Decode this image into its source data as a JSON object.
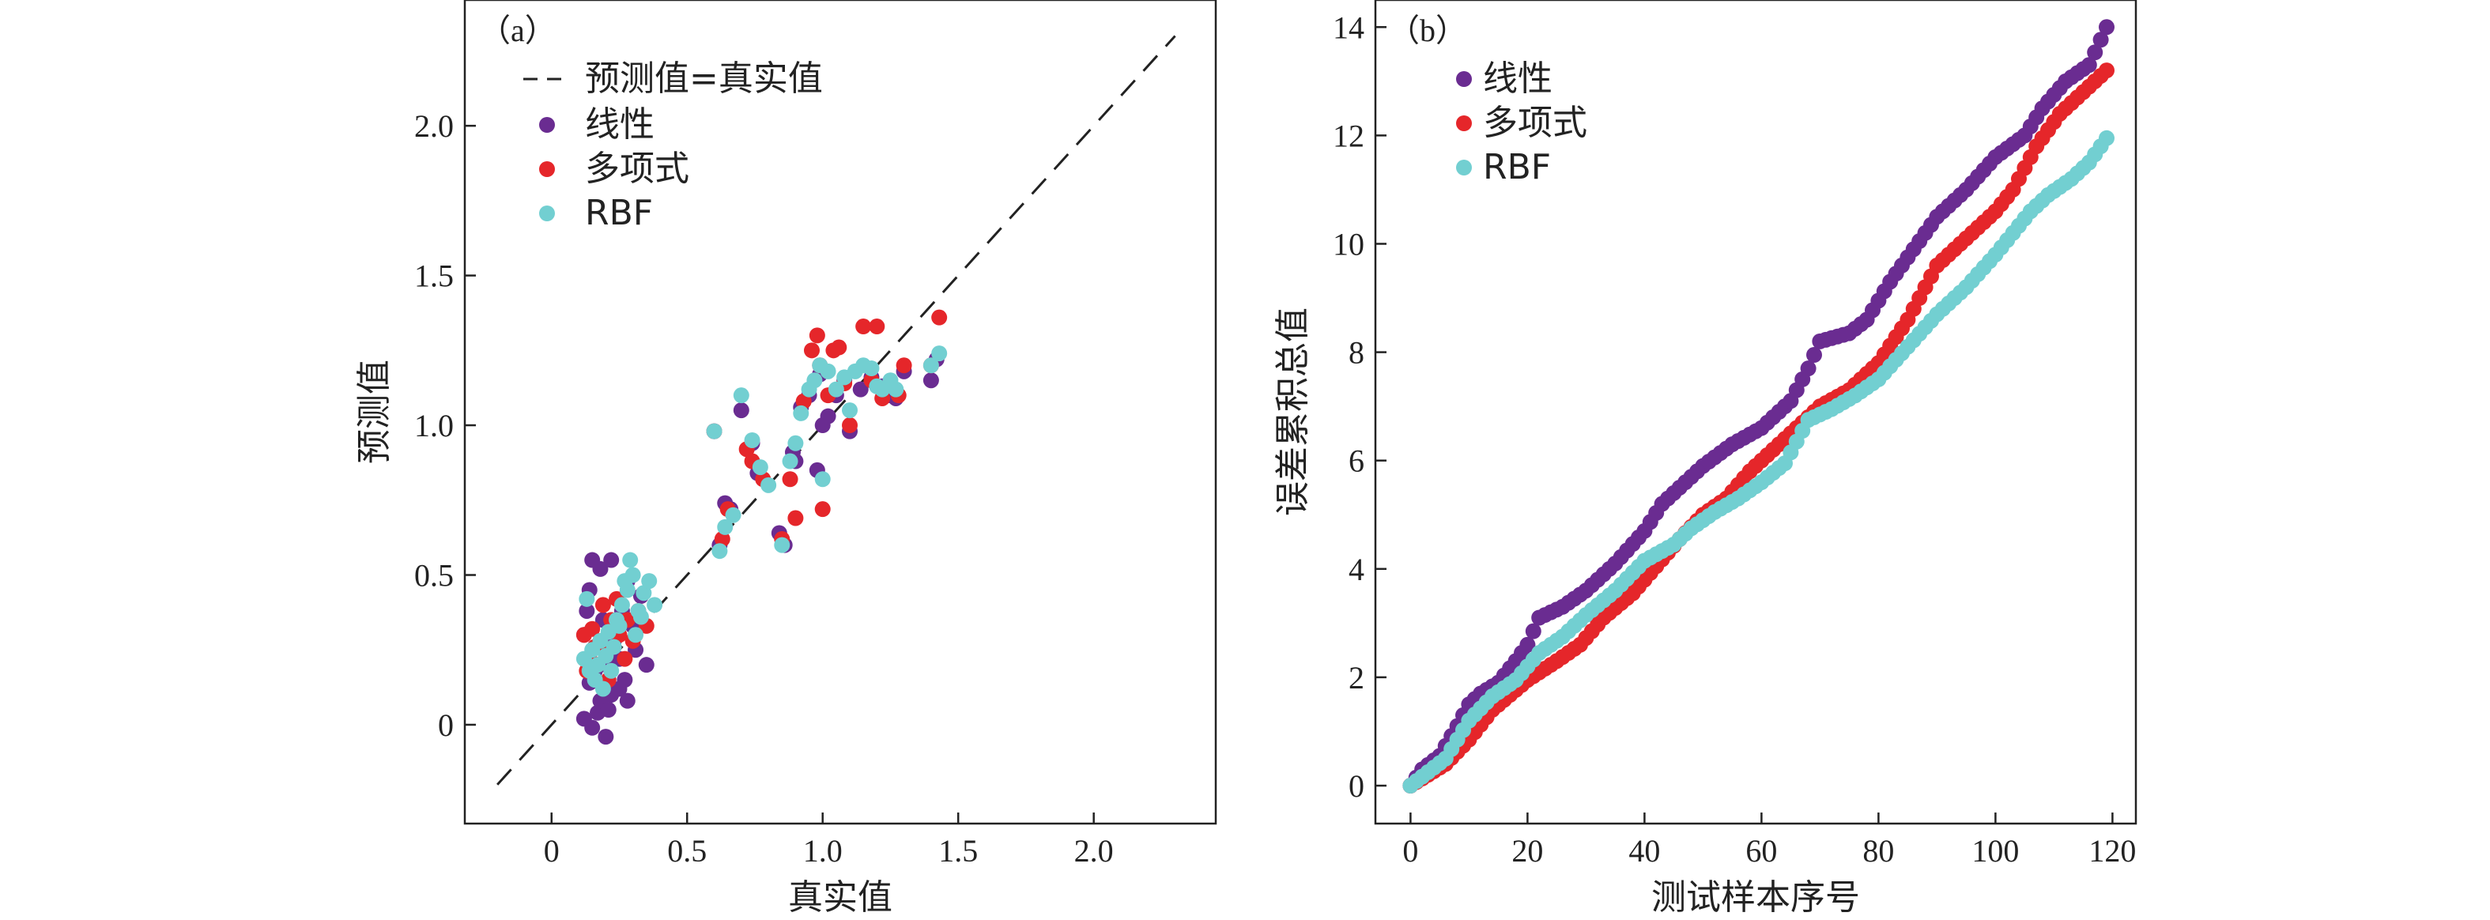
{
  "colors": {
    "linear": "#6a2c91",
    "polynomial": "#e5262a",
    "rbf": "#72cfd1",
    "diagonal": "#222222"
  },
  "chart_data": [
    {
      "type": "scatter",
      "panel_label": "（a）",
      "xlabel": "真实值",
      "ylabel": "预测值",
      "xlim": [
        -0.32,
        2.45
      ],
      "ylim": [
        -0.33,
        2.42
      ],
      "xticks": [
        0,
        0.5,
        1.0,
        1.5,
        2.0
      ],
      "xtick_labels": [
        "0",
        "0.5",
        "1.0",
        "1.5",
        "2.0"
      ],
      "yticks": [
        0,
        0.5,
        1.0,
        1.5,
        2.0
      ],
      "ytick_labels": [
        "0",
        "0.5",
        "1.0",
        "1.5",
        "2.0"
      ],
      "legend_position": "top-left",
      "reference_line": {
        "name": "预测值=真实值",
        "from": [
          -0.2,
          -0.2
        ],
        "to": [
          2.3,
          2.3
        ]
      },
      "series": [
        {
          "name": "线性",
          "color_key": "linear",
          "points": [
            [
              0.12,
              0.02
            ],
            [
              0.15,
              -0.01
            ],
            [
              0.17,
              0.04
            ],
            [
              0.2,
              -0.04
            ],
            [
              0.18,
              0.08
            ],
            [
              0.22,
              0.1
            ],
            [
              0.14,
              0.14
            ],
            [
              0.25,
              0.12
            ],
            [
              0.28,
              0.08
            ],
            [
              0.16,
              0.18
            ],
            [
              0.2,
              0.2
            ],
            [
              0.23,
              0.28
            ],
            [
              0.19,
              0.35
            ],
            [
              0.26,
              0.38
            ],
            [
              0.3,
              0.33
            ],
            [
              0.14,
              0.45
            ],
            [
              0.18,
              0.52
            ],
            [
              0.22,
              0.55
            ],
            [
              0.15,
              0.55
            ],
            [
              0.28,
              0.48
            ],
            [
              0.33,
              0.43
            ],
            [
              0.25,
              0.22
            ],
            [
              0.31,
              0.25
            ],
            [
              0.35,
              0.2
            ],
            [
              0.12,
              0.3
            ],
            [
              0.13,
              0.38
            ],
            [
              0.27,
              0.15
            ],
            [
              0.21,
              0.05
            ],
            [
              0.6,
              0.98
            ],
            [
              0.62,
              0.6
            ],
            [
              0.64,
              0.74
            ],
            [
              0.66,
              0.72
            ],
            [
              0.7,
              1.05
            ],
            [
              0.74,
              0.94
            ],
            [
              0.76,
              0.84
            ],
            [
              0.84,
              0.64
            ],
            [
              0.86,
              0.6
            ],
            [
              0.89,
              0.91
            ],
            [
              0.9,
              0.88
            ],
            [
              0.92,
              1.06
            ],
            [
              0.95,
              1.1
            ],
            [
              0.98,
              0.85
            ],
            [
              0.99,
              1.17
            ],
            [
              1.0,
              1.0
            ],
            [
              1.02,
              1.03
            ],
            [
              1.05,
              1.1
            ],
            [
              1.08,
              1.15
            ],
            [
              1.1,
              0.98
            ],
            [
              1.14,
              1.12
            ],
            [
              1.18,
              1.16
            ],
            [
              1.22,
              1.13
            ],
            [
              1.25,
              1.1
            ],
            [
              1.27,
              1.09
            ],
            [
              1.3,
              1.18
            ],
            [
              1.4,
              1.15
            ],
            [
              1.42,
              1.22
            ]
          ]
        },
        {
          "name": "多项式",
          "color_key": "polynomial",
          "points": [
            [
              0.12,
              0.3
            ],
            [
              0.15,
              0.32
            ],
            [
              0.18,
              0.28
            ],
            [
              0.2,
              0.25
            ],
            [
              0.22,
              0.35
            ],
            [
              0.14,
              0.22
            ],
            [
              0.17,
              0.2
            ],
            [
              0.25,
              0.3
            ],
            [
              0.28,
              0.35
            ],
            [
              0.3,
              0.28
            ],
            [
              0.32,
              0.38
            ],
            [
              0.35,
              0.33
            ],
            [
              0.13,
              0.18
            ],
            [
              0.19,
              0.4
            ],
            [
              0.24,
              0.42
            ],
            [
              0.27,
              0.22
            ],
            [
              0.21,
              0.15
            ],
            [
              0.16,
              0.26
            ],
            [
              0.6,
              0.98
            ],
            [
              0.63,
              0.62
            ],
            [
              0.65,
              0.72
            ],
            [
              0.72,
              0.92
            ],
            [
              0.74,
              0.88
            ],
            [
              0.78,
              0.82
            ],
            [
              0.85,
              0.62
            ],
            [
              0.88,
              0.82
            ],
            [
              0.9,
              0.69
            ],
            [
              0.93,
              1.08
            ],
            [
              0.96,
              1.25
            ],
            [
              0.98,
              1.3
            ],
            [
              0.99,
              1.2
            ],
            [
              1.0,
              0.72
            ],
            [
              1.02,
              1.1
            ],
            [
              1.04,
              1.25
            ],
            [
              1.06,
              1.26
            ],
            [
              1.08,
              1.14
            ],
            [
              1.1,
              1.0
            ],
            [
              1.15,
              1.33
            ],
            [
              1.18,
              1.15
            ],
            [
              1.2,
              1.33
            ],
            [
              1.22,
              1.09
            ],
            [
              1.25,
              1.13
            ],
            [
              1.28,
              1.1
            ],
            [
              1.3,
              1.2
            ],
            [
              1.4,
              1.2
            ],
            [
              1.43,
              1.36
            ]
          ]
        },
        {
          "name": "RBF",
          "color_key": "rbf",
          "points": [
            [
              0.12,
              0.22
            ],
            [
              0.14,
              0.18
            ],
            [
              0.15,
              0.25
            ],
            [
              0.17,
              0.2
            ],
            [
              0.18,
              0.28
            ],
            [
              0.2,
              0.23
            ],
            [
              0.21,
              0.31
            ],
            [
              0.23,
              0.26
            ],
            [
              0.24,
              0.35
            ],
            [
              0.26,
              0.4
            ],
            [
              0.28,
              0.45
            ],
            [
              0.3,
              0.5
            ],
            [
              0.32,
              0.38
            ],
            [
              0.34,
              0.44
            ],
            [
              0.16,
              0.15
            ],
            [
              0.19,
              0.12
            ],
            [
              0.22,
              0.18
            ],
            [
              0.25,
              0.33
            ],
            [
              0.27,
              0.48
            ],
            [
              0.29,
              0.55
            ],
            [
              0.31,
              0.3
            ],
            [
              0.33,
              0.36
            ],
            [
              0.13,
              0.42
            ],
            [
              0.36,
              0.48
            ],
            [
              0.38,
              0.4
            ],
            [
              0.6,
              0.98
            ],
            [
              0.62,
              0.58
            ],
            [
              0.64,
              0.66
            ],
            [
              0.67,
              0.7
            ],
            [
              0.7,
              1.1
            ],
            [
              0.74,
              0.95
            ],
            [
              0.77,
              0.86
            ],
            [
              0.8,
              0.8
            ],
            [
              0.85,
              0.6
            ],
            [
              0.88,
              0.88
            ],
            [
              0.9,
              0.94
            ],
            [
              0.92,
              1.04
            ],
            [
              0.95,
              1.12
            ],
            [
              0.97,
              1.15
            ],
            [
              0.99,
              1.2
            ],
            [
              1.0,
              0.82
            ],
            [
              1.02,
              1.18
            ],
            [
              1.05,
              1.12
            ],
            [
              1.08,
              1.16
            ],
            [
              1.1,
              1.05
            ],
            [
              1.12,
              1.18
            ],
            [
              1.15,
              1.2
            ],
            [
              1.18,
              1.19
            ],
            [
              1.2,
              1.13
            ],
            [
              1.22,
              1.12
            ],
            [
              1.25,
              1.15
            ],
            [
              1.27,
              1.12
            ],
            [
              1.4,
              1.2
            ],
            [
              1.43,
              1.24
            ]
          ]
        }
      ]
    },
    {
      "type": "scatter",
      "panel_label": "（b）",
      "xlabel": "测试样本序号",
      "ylabel": "误差累积总值",
      "xlim": [
        -6,
        124
      ],
      "ylim": [
        -0.7,
        14.5
      ],
      "xticks": [
        0,
        20,
        40,
        60,
        80,
        100,
        120
      ],
      "xtick_labels": [
        "0",
        "20",
        "40",
        "60",
        "80",
        "100",
        "120"
      ],
      "yticks": [
        0,
        2,
        4,
        6,
        8,
        10,
        12,
        14
      ],
      "ytick_labels": [
        "0",
        "2",
        "4",
        "6",
        "8",
        "10",
        "12",
        "14"
      ],
      "legend_position": "top-left",
      "n_points": 120,
      "series": [
        {
          "name": "线性",
          "color_key": "linear",
          "knots": [
            [
              0,
              0.0
            ],
            [
              2,
              0.3
            ],
            [
              5,
              0.55
            ],
            [
              8,
              1.1
            ],
            [
              10,
              1.5
            ],
            [
              12,
              1.7
            ],
            [
              15,
              1.9
            ],
            [
              18,
              2.3
            ],
            [
              20,
              2.6
            ],
            [
              22,
              3.1
            ],
            [
              26,
              3.3
            ],
            [
              30,
              3.6
            ],
            [
              35,
              4.1
            ],
            [
              40,
              4.7
            ],
            [
              43,
              5.2
            ],
            [
              46,
              5.5
            ],
            [
              50,
              5.9
            ],
            [
              55,
              6.3
            ],
            [
              60,
              6.6
            ],
            [
              65,
              7.1
            ],
            [
              68,
              7.7
            ],
            [
              70,
              8.2
            ],
            [
              75,
              8.35
            ],
            [
              78,
              8.6
            ],
            [
              82,
              9.3
            ],
            [
              86,
              9.9
            ],
            [
              90,
              10.5
            ],
            [
              95,
              11.0
            ],
            [
              100,
              11.6
            ],
            [
              105,
              12.0
            ],
            [
              108,
              12.5
            ],
            [
              112,
              13.0
            ],
            [
              116,
              13.3
            ],
            [
              119,
              14.0
            ]
          ]
        },
        {
          "name": "多项式",
          "color_key": "polynomial",
          "knots": [
            [
              0,
              0.0
            ],
            [
              3,
              0.2
            ],
            [
              6,
              0.4
            ],
            [
              10,
              0.85
            ],
            [
              14,
              1.4
            ],
            [
              20,
              1.95
            ],
            [
              25,
              2.3
            ],
            [
              29,
              2.6
            ],
            [
              33,
              3.1
            ],
            [
              38,
              3.55
            ],
            [
              42,
              4.05
            ],
            [
              46,
              4.55
            ],
            [
              50,
              5.0
            ],
            [
              54,
              5.3
            ],
            [
              58,
              5.8
            ],
            [
              62,
              6.2
            ],
            [
              66,
              6.6
            ],
            [
              70,
              7.0
            ],
            [
              75,
              7.3
            ],
            [
              80,
              7.8
            ],
            [
              85,
              8.6
            ],
            [
              90,
              9.6
            ],
            [
              95,
              10.1
            ],
            [
              100,
              10.6
            ],
            [
              103,
              11.0
            ],
            [
              107,
              11.8
            ],
            [
              111,
              12.4
            ],
            [
              115,
              12.8
            ],
            [
              119,
              13.2
            ]
          ]
        },
        {
          "name": "RBF",
          "color_key": "rbf",
          "knots": [
            [
              0,
              0.0
            ],
            [
              3,
              0.25
            ],
            [
              6,
              0.5
            ],
            [
              10,
              1.2
            ],
            [
              14,
              1.65
            ],
            [
              18,
              1.95
            ],
            [
              22,
              2.45
            ],
            [
              26,
              2.75
            ],
            [
              30,
              3.15
            ],
            [
              35,
              3.6
            ],
            [
              40,
              4.15
            ],
            [
              45,
              4.45
            ],
            [
              48,
              4.75
            ],
            [
              52,
              5.05
            ],
            [
              56,
              5.3
            ],
            [
              60,
              5.6
            ],
            [
              64,
              5.95
            ],
            [
              68,
              6.75
            ],
            [
              72,
              6.95
            ],
            [
              76,
              7.2
            ],
            [
              80,
              7.5
            ],
            [
              85,
              8.1
            ],
            [
              90,
              8.7
            ],
            [
              95,
              9.2
            ],
            [
              100,
              9.8
            ],
            [
              103,
              10.2
            ],
            [
              106,
              10.6
            ],
            [
              109,
              10.9
            ],
            [
              113,
              11.2
            ],
            [
              116,
              11.5
            ],
            [
              119,
              11.95
            ]
          ]
        }
      ]
    }
  ]
}
